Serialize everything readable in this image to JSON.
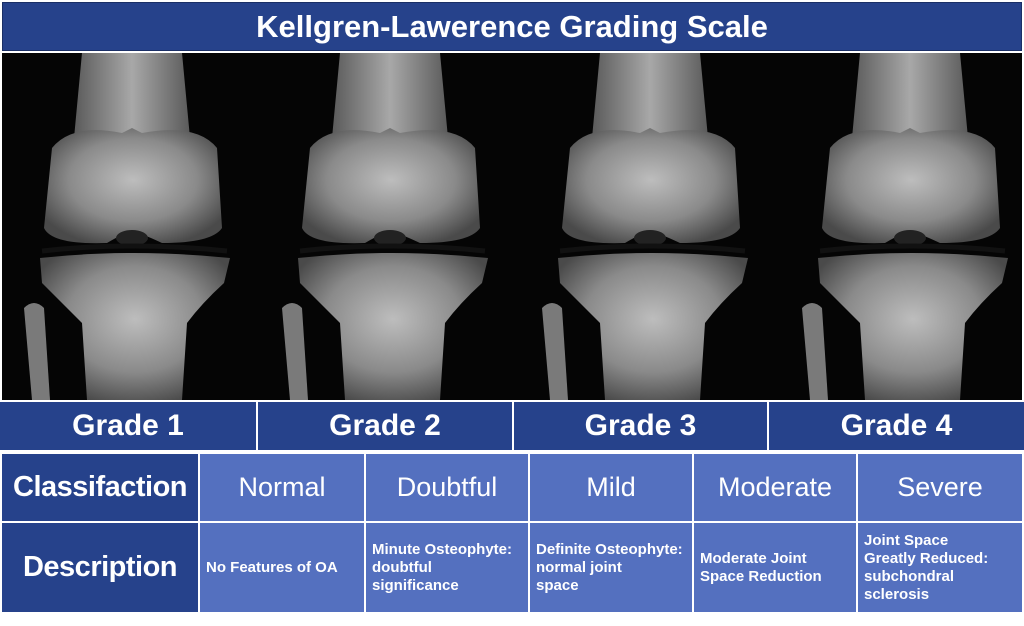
{
  "title": "Kellgren-Lawerence Grading Scale",
  "grades": [
    "Grade 1",
    "Grade 2",
    "Grade 3",
    "Grade 4"
  ],
  "table": {
    "classification_header": "Classifaction",
    "description_header": "Description",
    "classifications": [
      "Normal",
      "Doubtful",
      "Mild",
      "Moderate",
      "Severe"
    ],
    "descriptions": [
      "No Features of OA",
      "Minute Osteophyte:\ndoubtful\nsignificance",
      "Definite Osteophyte:\nnormal joint\nspace",
      "Moderate Joint\nSpace Reduction",
      "Joint Space\nGreatly Reduced:\nsubchondral\nsclerosis"
    ]
  },
  "colors": {
    "header_blue": "#26428b",
    "cell_blue": "#5470bf",
    "text": "#ffffff"
  },
  "image": {
    "subject": "knee-xray-series",
    "panels": 4
  }
}
